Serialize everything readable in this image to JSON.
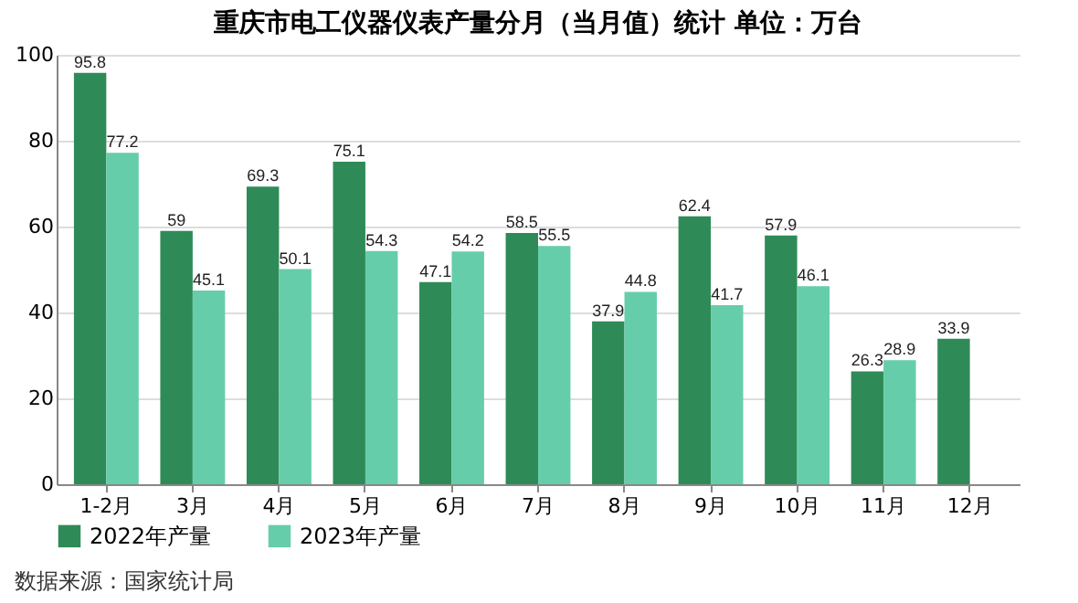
{
  "chart_data": {
    "type": "bar",
    "title": "重庆市电工仪器仪表产量分月（当月值）统计 单位：万台",
    "categories": [
      "1-2月",
      "3月",
      "4月",
      "5月",
      "6月",
      "7月",
      "8月",
      "9月",
      "10月",
      "11月",
      "12月"
    ],
    "series": [
      {
        "name": "2022年产量",
        "color": "#2e8b57",
        "values": [
          95.8,
          59,
          69.3,
          75.1,
          47.1,
          58.5,
          37.9,
          62.4,
          57.9,
          26.3,
          33.9
        ]
      },
      {
        "name": "2023年产量",
        "color": "#66cdaa",
        "values": [
          77.2,
          45.1,
          50.1,
          54.3,
          54.2,
          55.5,
          44.8,
          41.7,
          46.1,
          28.9,
          null
        ]
      }
    ],
    "ylim": [
      0,
      100
    ],
    "yticks": [
      0,
      20,
      40,
      60,
      80,
      100
    ],
    "grid": "y",
    "legend": "bottom",
    "data_labels": true,
    "annotations": [
      "数据来源：国家统计局"
    ]
  }
}
